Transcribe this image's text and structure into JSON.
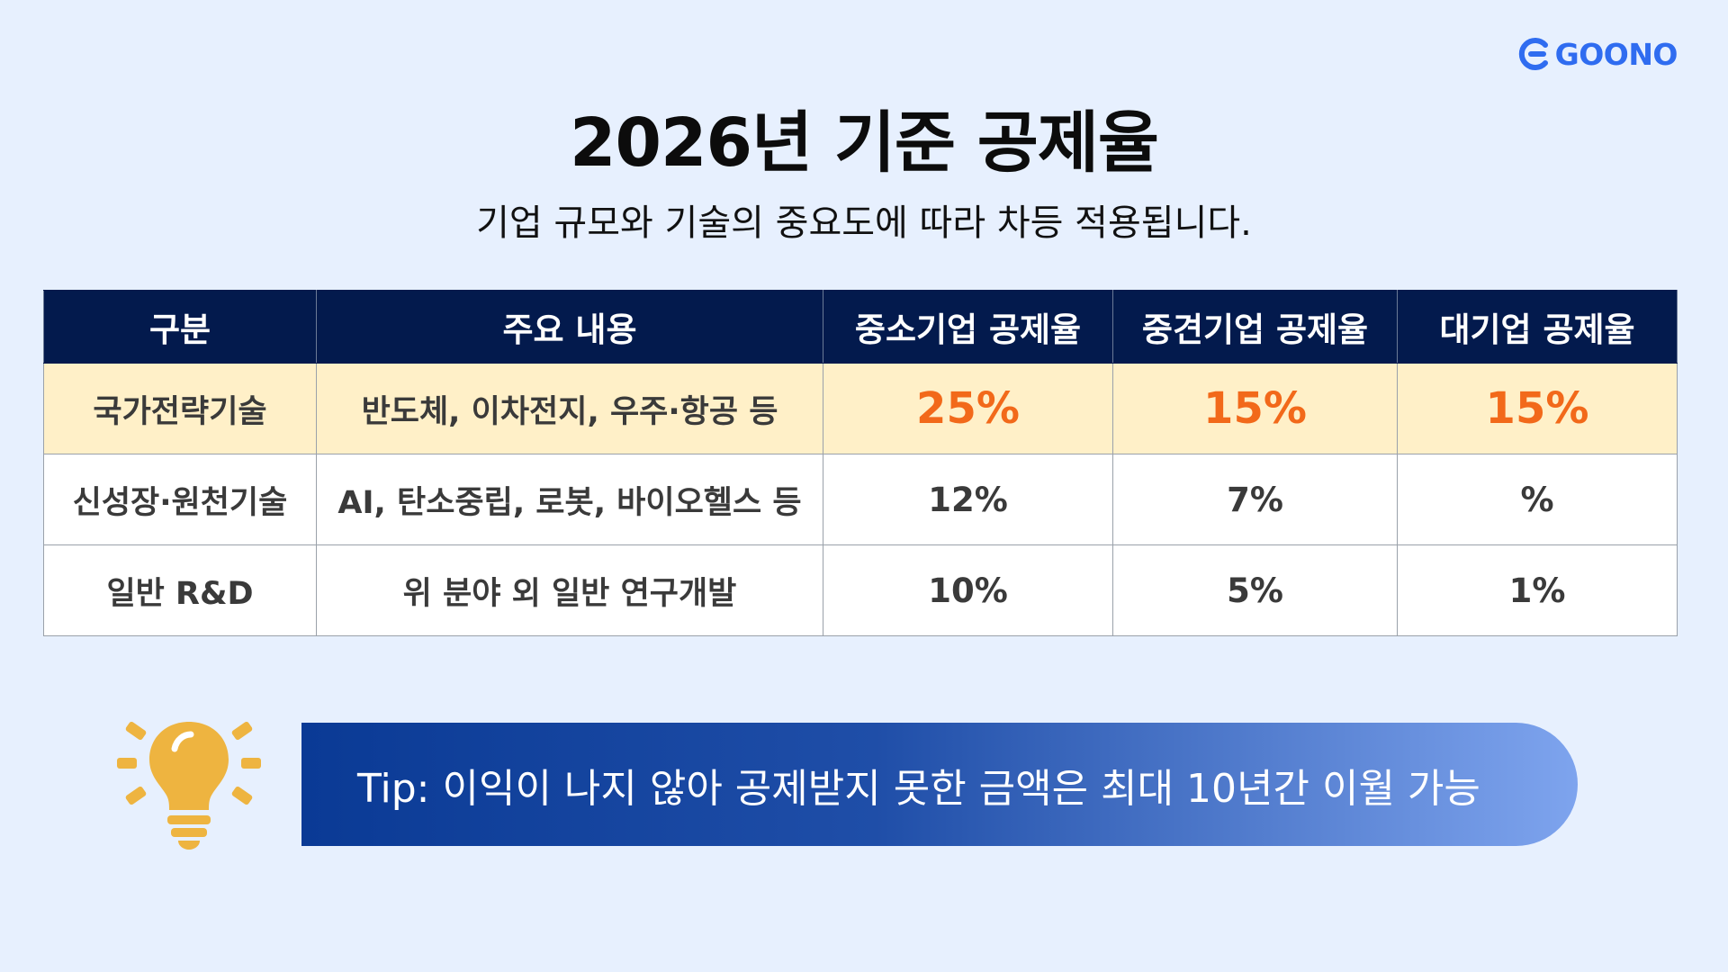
{
  "brand": {
    "name": "GOONO",
    "color": "#2f6cf0"
  },
  "heading": {
    "title": "2026년 기준 공제율",
    "subtitle": "기업 규모와 기술의 중요도에 따라 차등 적용됩니다."
  },
  "table": {
    "headers": [
      "구분",
      "주요 내용",
      "중소기업 공제율",
      "중견기업 공제율",
      "대기업 공제율"
    ],
    "rows": [
      {
        "category": "국가전략기술",
        "content": "반도체, 이차전지, 우주·항공 등",
        "sme": "25%",
        "midsize": "15%",
        "large": "15%",
        "highlight": true
      },
      {
        "category": "신성장·원천기술",
        "content": "AI, 탄소중립, 로봇, 바이오헬스 등",
        "sme": "12%",
        "midsize": "7%",
        "large": "%",
        "highlight": false
      },
      {
        "category": "일반 R&D",
        "content": "위 분야 외 일반 연구개발",
        "sme": "10%",
        "midsize": "5%",
        "large": "1%",
        "highlight": false
      }
    ]
  },
  "tip": {
    "text": "Tip: 이익이 나지 않아 공제받지 못한 금액은 최대 10년간 이월 가능",
    "icon": "lightbulb-icon"
  },
  "colors": {
    "header_bg": "#031a4d",
    "highlight_row_bg": "#fff0c8",
    "highlight_value": "#f2691a",
    "page_bg": "#e7f0fe",
    "bulb": "#eeb440"
  }
}
